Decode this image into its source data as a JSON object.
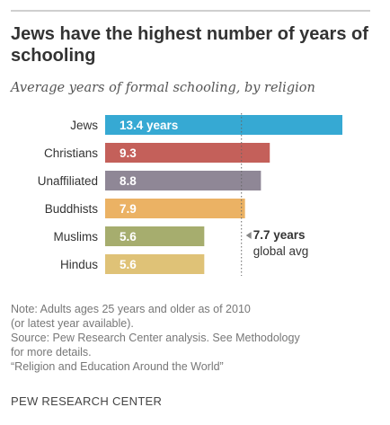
{
  "title": "Jews have the highest number of years of schooling",
  "subtitle": "Average years of formal schooling, by religion",
  "chart_data": {
    "type": "bar",
    "orientation": "horizontal",
    "title": "Jews have the highest number of years of schooling",
    "subtitle": "Average years of formal schooling, by religion",
    "categories": [
      "Jews",
      "Christians",
      "Unaffiliated",
      "Buddhists",
      "Muslims",
      "Hindus"
    ],
    "values": [
      13.4,
      9.3,
      8.8,
      7.9,
      5.6,
      5.6
    ],
    "value_labels": [
      "13.4 years",
      "9.3",
      "8.8",
      "7.9",
      "5.6",
      "5.6"
    ],
    "colors": [
      "#36a9d3",
      "#c4605a",
      "#8f8796",
      "#ebb264",
      "#a6ad6e",
      "#dfc277"
    ],
    "xlim": [
      0,
      13.4
    ],
    "reference": {
      "value": 7.7,
      "label_line1": "7.7 years",
      "label_line2": "global avg"
    },
    "xlabel": "",
    "ylabel": "",
    "grid": false,
    "legend": "none"
  },
  "notes": [
    "Note: Adults ages 25 years and older as of 2010",
    "(or latest year available).",
    "Source: Pew Research Center analysis. See Methodology",
    "for more details.",
    "“Religion and Education Around the World”"
  ],
  "source_org": "PEW RESEARCH CENTER"
}
